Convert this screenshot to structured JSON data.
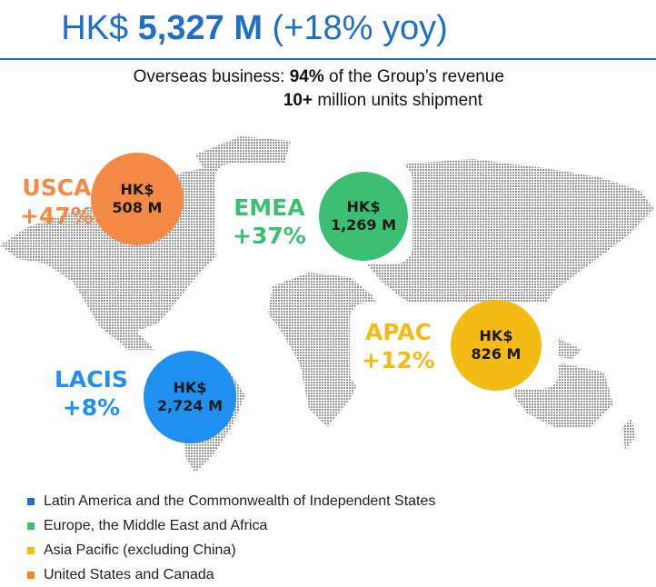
{
  "header": {
    "title_prefix": "HK$ ",
    "title_value": "5,327 M",
    "title_suffix": " (+18% yoy)",
    "line1_prefix": "Overseas business: ",
    "line1_bold": "94%",
    "line1_suffix": " of the Group’s revenue",
    "line2_bold": "10+",
    "line2_suffix": " million units shipment"
  },
  "regions": {
    "usca": {
      "name": "USCA",
      "growth": "+47%",
      "currency": "HK$",
      "amount": "508 M",
      "color": "#f58a47"
    },
    "emea": {
      "name": "EMEA",
      "growth": "+37%",
      "currency": "HK$",
      "amount": "1,269 M",
      "color": "#3dbf73"
    },
    "apac": {
      "name": "APAC",
      "growth": "+12%",
      "currency": "HK$",
      "amount": "826 M",
      "color": "#f5bb15"
    },
    "lacis": {
      "name": "LACIS",
      "growth": "+8%",
      "currency": "HK$",
      "amount": "2,724 M",
      "color": "#1f8ff0"
    }
  },
  "legend": [
    {
      "label": "Latin America and the Commonwealth of Independent States",
      "color": "#1f6fc5"
    },
    {
      "label": "Europe, the Middle East and Africa",
      "color": "#3dbf73"
    },
    {
      "label": "Asia Pacific (excluding China)",
      "color": "#f5bb15"
    },
    {
      "label": "United States and Canada",
      "color": "#f58a1e"
    }
  ]
}
